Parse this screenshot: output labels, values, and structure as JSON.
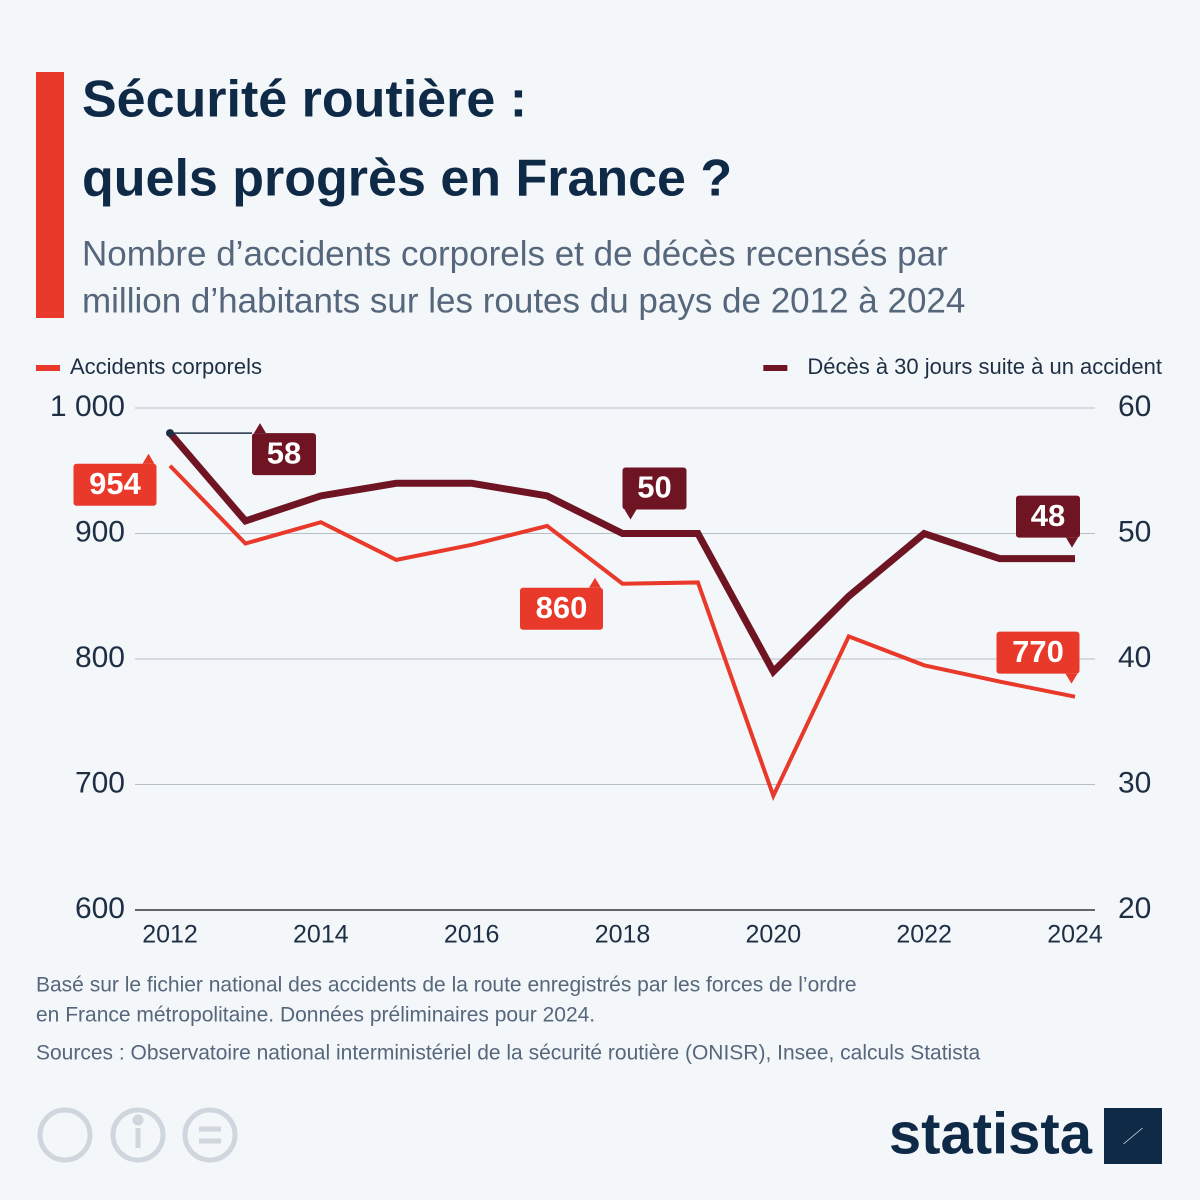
{
  "chart_data": {
    "type": "line",
    "title": [
      "Sécurité routière :",
      "quels progrès en France ?"
    ],
    "subtitle": [
      "Nombre d’accidents corporels et de décès recensés par",
      "million d’habitants sur les routes du pays de 2012 à 2024"
    ],
    "x": [
      2012,
      2013,
      2014,
      2015,
      2016,
      2017,
      2018,
      2019,
      2020,
      2021,
      2022,
      2023,
      2024
    ],
    "xlim": [
      2012,
      2024
    ],
    "xticks": [
      2012,
      2014,
      2016,
      2018,
      2020,
      2022,
      2024
    ],
    "ylim": [
      600,
      1000
    ],
    "yticks": [
      600,
      700,
      800,
      900,
      {
        "value": 1000,
        "label": "1 000"
      }
    ],
    "y2lim": [
      20,
      60
    ],
    "y2ticks": [
      20,
      30,
      40,
      50,
      60
    ],
    "grid": true,
    "labeled_points": [
      0,
      6,
      12
    ],
    "series": [
      {
        "name": "Accidents corporels",
        "color": "#e8392b",
        "values": [
          954,
          892,
          909,
          879,
          891,
          906,
          860,
          861,
          691,
          818,
          795,
          782,
          770
        ]
      },
      {
        "name": "Décès à 30 jours suite à un accident",
        "color": "#6e1423",
        "axis": "y2",
        "values": [
          58,
          51,
          53,
          54,
          54,
          53,
          50,
          50,
          39,
          45,
          50,
          48,
          48
        ]
      }
    ],
    "notes": [
      "Basé sur le fichier national des accidents de la route enregistrés par les forces de l’ordre",
      "en France métropolitaine. Données préliminaires pour 2024."
    ],
    "source": "Sources : Observatoire national interministériel de la sécurité routière (ONISR), Insee, calculs Statista",
    "brand": "statista"
  }
}
